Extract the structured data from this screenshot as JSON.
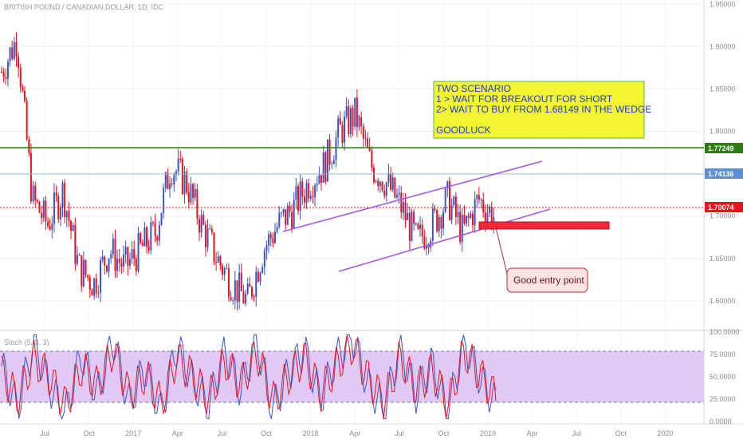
{
  "chart_data": [
    {
      "type": "candlestick",
      "title": "BRITISH POUND / CANADIAN DOLLAR, 1D, IDC",
      "ylim": [
        1.565,
        1.955
      ],
      "y_ticks": [
        "1.95000",
        "1.90000",
        "1.85000",
        "1.80000",
        "1.75000",
        "1.70000",
        "1.65000",
        "1.60000"
      ],
      "x_ticks": [
        "Jul",
        "Oct",
        "2017",
        "Apr",
        "Jul",
        "Oct",
        "2018",
        "Apr",
        "Jul",
        "Oct",
        "2019",
        "Apr",
        "Jul",
        "Oct",
        "2020"
      ],
      "x": [
        "2016-05",
        "2016-06",
        "2016-07",
        "2016-08",
        "2016-09",
        "2016-10",
        "2016-11",
        "2016-12",
        "2017-01",
        "2017-02",
        "2017-03",
        "2017-04",
        "2017-05",
        "2017-06",
        "2017-07",
        "2017-08",
        "2017-09",
        "2017-10",
        "2017-11",
        "2017-12",
        "2018-01",
        "2018-02",
        "2018-03",
        "2018-04",
        "2018-05",
        "2018-06",
        "2018-07",
        "2018-08",
        "2018-09",
        "2018-10",
        "2018-11",
        "2018-12",
        "2019-01"
      ],
      "close_approx": [
        1.87,
        1.91,
        1.72,
        1.69,
        1.73,
        1.64,
        1.62,
        1.66,
        1.64,
        1.66,
        1.68,
        1.76,
        1.74,
        1.69,
        1.65,
        1.62,
        1.6,
        1.66,
        1.69,
        1.71,
        1.74,
        1.76,
        1.8,
        1.82,
        1.76,
        1.74,
        1.71,
        1.67,
        1.69,
        1.72,
        1.68,
        1.72,
        1.7
      ],
      "price_labels": [
        {
          "text": "1.77249",
          "color": "#2e7d12"
        },
        {
          "text": "1.74136",
          "color": "#5b8fd6"
        },
        {
          "text": "1.70074",
          "color": "#e8131b"
        }
      ],
      "annotations": [
        {
          "text": "TWO SCENARIO"
        },
        {
          "text": "1 > WAIT FOR BREAKOUT FOR SHORT"
        },
        {
          "text": "2> WAIT TO BUY FROM 1.68149 IN THE WEDGE"
        },
        {
          "text": "GOODLUCK"
        },
        {
          "text": "Good entry point"
        }
      ],
      "colors": {
        "up": "#3a55c9",
        "down": "#e8131b",
        "support": "#2e7d12",
        "wedge": "#a35ae0",
        "note_bg": "#f4f531"
      }
    },
    {
      "type": "line",
      "title": "Stoch (5, 3, 3)",
      "ylim": [
        0,
        100
      ],
      "y_ticks": [
        "100.0000",
        "75.0000",
        "50.0000",
        "25.0000",
        "0.0000"
      ],
      "bands": [
        20,
        80
      ],
      "series": [
        {
          "values": [
            62,
            15,
            88,
            40,
            8,
            75,
            30,
            92,
            20,
            60,
            10,
            85,
            45,
            18,
            78,
            35,
            90,
            12,
            55,
            80,
            25,
            70,
            95,
            40,
            15,
            82,
            30,
            65,
            10,
            88,
            50,
            20
          ],
          "color": "#3a55c9"
        },
        {
          "values": [
            55,
            25,
            70,
            50,
            18,
            60,
            40,
            80,
            30,
            52,
            20,
            72,
            50,
            25,
            68,
            42,
            78,
            22,
            50,
            72,
            32,
            62,
            85,
            48,
            22,
            72,
            36,
            58,
            18,
            78,
            52,
            28
          ],
          "color": "#e8131b"
        }
      ]
    }
  ]
}
